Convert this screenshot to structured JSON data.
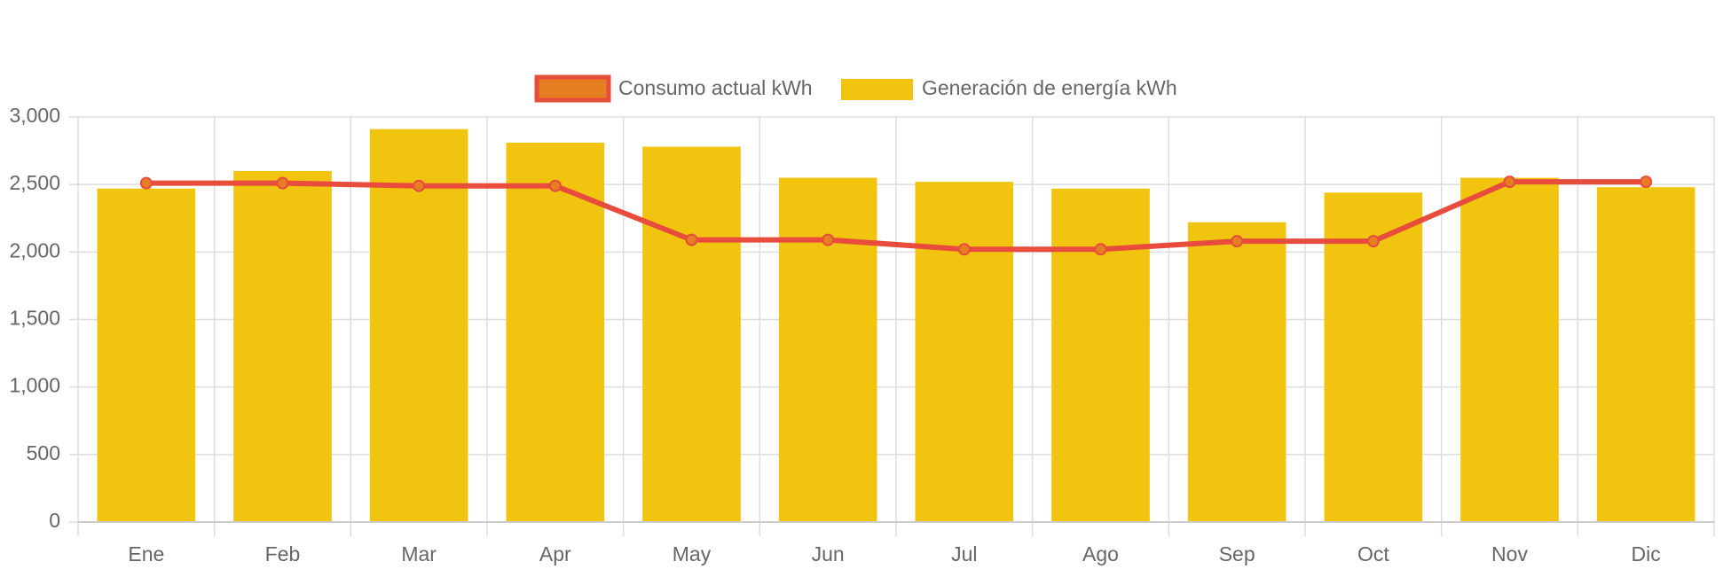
{
  "chart_data": {
    "type": "bar",
    "categories": [
      "Ene",
      "Feb",
      "Mar",
      "Apr",
      "May",
      "Jun",
      "Jul",
      "Ago",
      "Sep",
      "Oct",
      "Nov",
      "Dic"
    ],
    "ylim": [
      0,
      3000
    ],
    "yticks": [
      0,
      500,
      1000,
      1500,
      2000,
      2500,
      3000
    ],
    "ytick_labels": [
      "0",
      "500",
      "1,000",
      "1,500",
      "2,000",
      "2,500",
      "3,000"
    ],
    "grid": true,
    "legend_position": "top-center",
    "series": [
      {
        "name": "Consumo actual kWh",
        "type": "line",
        "color": "#e74c3c",
        "point_fill": "#e67e22",
        "values": [
          2510,
          2510,
          2490,
          2490,
          2090,
          2090,
          2020,
          2020,
          2080,
          2080,
          2520,
          2520
        ]
      },
      {
        "name": "Generación de energía kWh",
        "type": "bar",
        "color": "#f1c40f",
        "values": [
          2470,
          2600,
          2910,
          2810,
          2780,
          2550,
          2520,
          2470,
          2220,
          2440,
          2550,
          2480
        ]
      }
    ]
  }
}
